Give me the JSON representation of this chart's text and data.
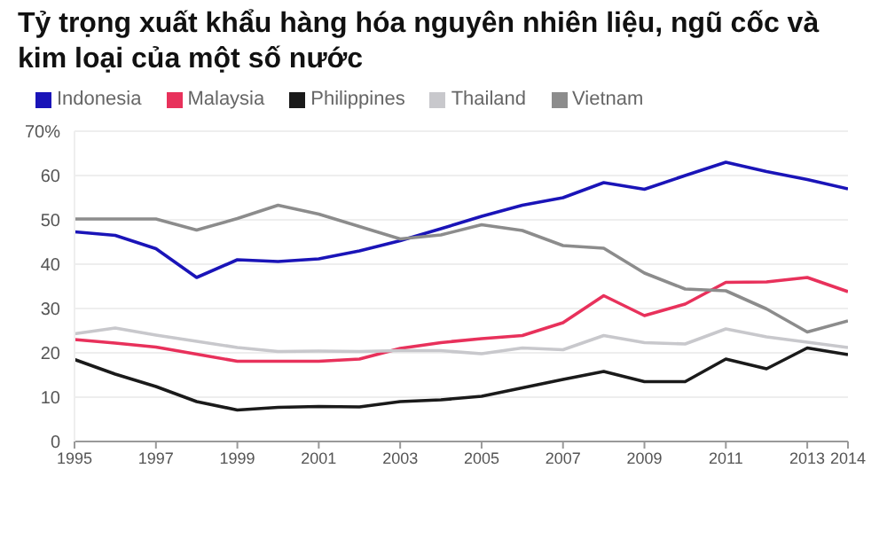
{
  "chart_data": {
    "type": "line",
    "title": "Tỷ trọng xuất khẩu hàng hóa nguyên nhiên liệu, ngũ cốc và kim loại của một số nước",
    "x": [
      1995,
      1996,
      1997,
      1998,
      1999,
      2000,
      2001,
      2002,
      2003,
      2004,
      2005,
      2006,
      2007,
      2008,
      2009,
      2010,
      2011,
      2012,
      2013,
      2014
    ],
    "series": [
      {
        "name": "Indonesia",
        "color": "#1a14b8",
        "values": [
          47.3,
          46.5,
          43.5,
          37,
          41,
          40.6,
          41.2,
          43,
          45.3,
          48,
          50.8,
          53.3,
          55,
          58.4,
          56.9,
          60,
          63,
          60.9,
          59.1,
          57
        ]
      },
      {
        "name": "Malaysia",
        "color": "#e8315b",
        "values": [
          23,
          22.2,
          21.3,
          19.7,
          18.1,
          18.1,
          18.1,
          18.6,
          21,
          22.3,
          23.2,
          23.9,
          26.8,
          32.9,
          28.4,
          31,
          35.9,
          36,
          37,
          33.8
        ]
      },
      {
        "name": "Philippines",
        "color": "#1a1a1a",
        "values": [
          18.5,
          15.2,
          12.4,
          9,
          7.1,
          7.7,
          7.9,
          7.8,
          9,
          9.4,
          10.2,
          12.1,
          14,
          15.8,
          13.5,
          13.5,
          18.6,
          16.4,
          21.1,
          19.6
        ]
      },
      {
        "name": "Thailand",
        "color": "#c8c8cc",
        "values": [
          24.3,
          25.6,
          24,
          22.6,
          21.2,
          20.3,
          20.4,
          20.3,
          20.5,
          20.5,
          19.8,
          21.1,
          20.7,
          23.9,
          22.3,
          22,
          25.4,
          23.6,
          22.4,
          21.2
        ]
      },
      {
        "name": "Vietnam",
        "color": "#8c8c8c",
        "values": [
          50.2,
          50.2,
          50.2,
          47.7,
          50.3,
          53.3,
          51.3,
          48.5,
          45.7,
          46.6,
          48.9,
          47.6,
          44.2,
          43.6,
          38,
          34.4,
          34,
          29.9,
          24.7,
          27.2
        ]
      }
    ],
    "xlim": [
      1995,
      2014
    ],
    "xticks": [
      1995,
      1997,
      1999,
      2001,
      2003,
      2005,
      2007,
      2009,
      2011,
      2013,
      2014
    ],
    "ylim": [
      0,
      70
    ],
    "yticks": [
      0,
      10,
      20,
      30,
      40,
      50,
      60,
      {
        "value": 70,
        "label": "70%"
      }
    ],
    "grid": "y",
    "legend": "top left",
    "marker": "none",
    "line_style": "solid"
  }
}
